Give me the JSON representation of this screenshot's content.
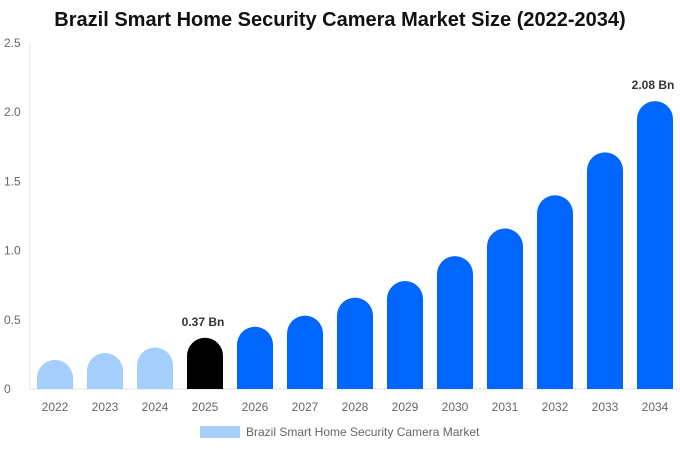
{
  "chart_data": {
    "type": "bar",
    "title": "Brazil Smart Home Security Camera Market Size (2022-2034)",
    "categories": [
      "2022",
      "2023",
      "2024",
      "2025",
      "2026",
      "2027",
      "2028",
      "2029",
      "2030",
      "2031",
      "2032",
      "2033",
      "2034"
    ],
    "series": [
      {
        "name": "Brazil Smart Home Security Camera Market",
        "values": [
          0.21,
          0.26,
          0.3,
          0.37,
          0.45,
          0.53,
          0.66,
          0.78,
          0.96,
          1.16,
          1.4,
          1.71,
          2.08
        ]
      }
    ],
    "data_labels": [
      {
        "category": "2025",
        "text": "0.37 Bn"
      },
      {
        "category": "2034",
        "text": "2.08 Bn"
      }
    ],
    "ylim": [
      0,
      2.5
    ],
    "yticks": [
      "0",
      "0.5",
      "1.0",
      "1.5",
      "2.0",
      "2.5"
    ],
    "xlabel": "",
    "ylabel": "",
    "grid": false,
    "legend_position": "bottom",
    "colors": {
      "historical": "#a4cefc",
      "current": "#000000",
      "forecast": "#0066ff"
    }
  }
}
